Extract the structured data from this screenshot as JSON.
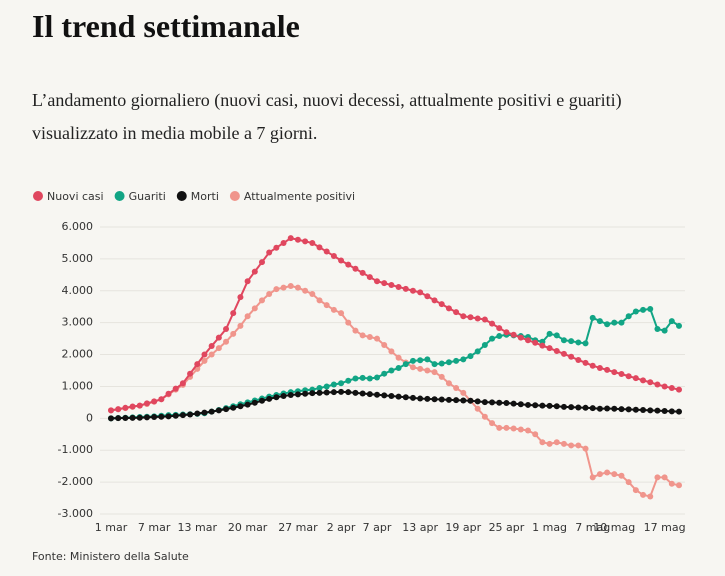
{
  "header": {
    "title": "Il trend settimanale",
    "subtitle": "L’andamento giornaliero (nuovi casi, nuovi decessi, attualmente positivi e guariti) visualizzato in media mobile a 7 giorni."
  },
  "chart_data": {
    "type": "line",
    "categories": [
      "1 mar",
      null,
      null,
      null,
      null,
      null,
      "7 mar",
      null,
      null,
      null,
      null,
      null,
      "13 mar",
      null,
      null,
      null,
      null,
      null,
      null,
      "20 mar",
      null,
      null,
      null,
      null,
      null,
      null,
      "27 mar",
      null,
      null,
      null,
      null,
      null,
      "2 apr",
      null,
      null,
      null,
      null,
      "7 apr",
      null,
      null,
      null,
      null,
      null,
      "13 apr",
      null,
      null,
      null,
      null,
      null,
      "19 apr",
      null,
      null,
      null,
      null,
      null,
      "25 apr",
      null,
      null,
      null,
      null,
      null,
      "1 mag",
      null,
      null,
      null,
      null,
      null,
      "7 mag",
      null,
      null,
      "10 mag",
      null,
      null,
      null,
      null,
      null,
      null,
      "17 mag",
      null,
      null
    ],
    "series": [
      {
        "name": "Nuovi casi",
        "color": "#e0475f",
        "values": [
          250,
          290,
          330,
          370,
          400,
          470,
          530,
          600,
          770,
          930,
          1100,
          1400,
          1700,
          2000,
          2270,
          2530,
          2800,
          3300,
          3800,
          4300,
          4600,
          4900,
          5200,
          5350,
          5500,
          5650,
          5600,
          5550,
          5500,
          5360,
          5230,
          5090,
          4950,
          4820,
          4690,
          4560,
          4430,
          4300,
          4240,
          4180,
          4120,
          4060,
          4000,
          3950,
          3830,
          3700,
          3580,
          3450,
          3330,
          3200,
          3170,
          3130,
          3100,
          2970,
          2830,
          2700,
          2620,
          2530,
          2450,
          2370,
          2280,
          2200,
          2110,
          2020,
          1930,
          1830,
          1740,
          1650,
          1580,
          1520,
          1450,
          1390,
          1320,
          1260,
          1190,
          1130,
          1060,
          1000,
          950,
          900
        ]
      },
      {
        "name": "Guariti",
        "color": "#12a585",
        "values": [
          0,
          10,
          20,
          30,
          40,
          50,
          60,
          80,
          100,
          110,
          120,
          130,
          140,
          160,
          210,
          260,
          320,
          380,
          440,
          500,
          560,
          620,
          680,
          730,
          780,
          820,
          850,
          880,
          900,
          950,
          1000,
          1060,
          1100,
          1180,
          1250,
          1270,
          1250,
          1280,
          1400,
          1500,
          1580,
          1700,
          1800,
          1820,
          1850,
          1700,
          1720,
          1760,
          1800,
          1850,
          1950,
          2100,
          2300,
          2500,
          2580,
          2620,
          2600,
          2580,
          2550,
          2450,
          2400,
          2650,
          2600,
          2450,
          2420,
          2380,
          2350,
          3150,
          3050,
          2950,
          3000,
          3000,
          3200,
          3350,
          3400,
          3430,
          2800,
          2750,
          3050,
          2900
        ]
      },
      {
        "name": "Morti",
        "color": "#111111",
        "values": [
          0,
          5,
          10,
          15,
          20,
          30,
          40,
          50,
          60,
          80,
          100,
          120,
          150,
          180,
          210,
          250,
          290,
          330,
          380,
          430,
          490,
          550,
          610,
          660,
          700,
          730,
          750,
          770,
          790,
          800,
          810,
          820,
          830,
          820,
          800,
          780,
          760,
          740,
          720,
          700,
          680,
          660,
          640,
          620,
          610,
          600,
          590,
          580,
          570,
          560,
          550,
          530,
          510,
          500,
          490,
          480,
          460,
          440,
          420,
          410,
          400,
          390,
          380,
          360,
          350,
          340,
          330,
          320,
          300,
          310,
          300,
          290,
          280,
          270,
          260,
          250,
          240,
          230,
          220,
          210
        ]
      },
      {
        "name": "Attualmente positivi",
        "color": "#f0958c",
        "values": [
          250,
          280,
          320,
          360,
          400,
          450,
          520,
          600,
          750,
          900,
          1050,
          1300,
          1550,
          1800,
          2000,
          2200,
          2400,
          2650,
          2900,
          3200,
          3450,
          3700,
          3900,
          4050,
          4100,
          4150,
          4100,
          4000,
          3900,
          3700,
          3550,
          3400,
          3300,
          3000,
          2750,
          2600,
          2550,
          2500,
          2300,
          2100,
          1900,
          1750,
          1600,
          1550,
          1500,
          1450,
          1300,
          1100,
          950,
          800,
          550,
          300,
          50,
          -150,
          -300,
          -300,
          -320,
          -350,
          -380,
          -500,
          -750,
          -800,
          -750,
          -800,
          -850,
          -850,
          -950,
          -1850,
          -1750,
          -1700,
          -1750,
          -1800,
          -2000,
          -2250,
          -2400,
          -2450,
          -1850,
          -1850,
          -2050,
          -2100
        ]
      }
    ],
    "ylim": [
      -3000,
      6000
    ],
    "yticks": [
      {
        "value": -3000,
        "label": "-3.000"
      },
      {
        "value": -2000,
        "label": "-2.000"
      },
      {
        "value": -1000,
        "label": "-1.000"
      },
      0,
      {
        "value": 1000,
        "label": "1.000"
      },
      {
        "value": 2000,
        "label": "2.000"
      },
      {
        "value": 3000,
        "label": "3.000"
      },
      {
        "value": 4000,
        "label": "4.000"
      },
      {
        "value": 5000,
        "label": "5.000"
      },
      {
        "value": 6000,
        "label": "6.000"
      }
    ],
    "grid": true,
    "source": "Fonte: Ministero della Salute"
  }
}
